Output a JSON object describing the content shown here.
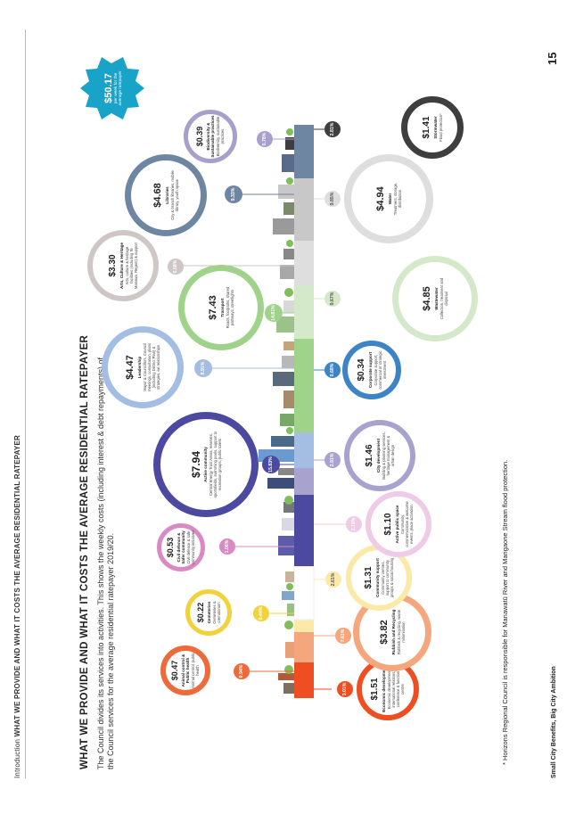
{
  "header": {
    "section": "Introduction",
    "title": "WHAT WE PROVIDE AND WHAT IT COSTS THE AVERAGE RESIDENTIAL RATEPAYER"
  },
  "main": {
    "title": "WHAT WE PROVIDE AND WHAT IT COSTS THE AVERAGE RESIDENTIAL RATEPAYER",
    "intro": "The Council divides its services into activities. This shows the weekly costs (including interest & debt repayments) of the Council services for the average residential ratepayer 2019/20."
  },
  "total": {
    "amount": "$50.17",
    "label": "per week for the average ratepayer"
  },
  "activities_top": [
    {
      "amount": "$0.47",
      "name": "Animal control & Public health",
      "desc": "Animal control, public health",
      "pct": "0.94%",
      "color": "#ef6a3a"
    },
    {
      "amount": "$0.22",
      "name": "Cemeteries",
      "desc": "Cemeteries & crematorium",
      "pct": "0.44%",
      "color": "#f2d23c"
    },
    {
      "amount": "$0.53",
      "name": "Civil defence & Safer community",
      "desc": "Civil defence & safe community initiatives",
      "pct": "1.06%",
      "color": "#d98ac3"
    },
    {
      "amount": "$7.94",
      "name": "Active community",
      "desc": "Central Energy Trust Arena, reserves, sportsfields, swimming pools, support to recreation groups, public toilets",
      "pct": "15.83%",
      "color": "#4b4aa0"
    },
    {
      "amount": "$4.47",
      "name": "Leadership",
      "desc": "Mayor & Councillors, Council meetings, consultation, plans (including District Plan) & strategies, iwi relationships",
      "pct": "8.91%",
      "color": "#a3bde3"
    },
    {
      "amount": "$7.43",
      "name": "Transport",
      "desc": "Roads, footpaths, shared pathways, streetlights",
      "pct": "14.81%",
      "color": "#9fd38a"
    },
    {
      "amount": "$3.30",
      "name": "Arts, Culture & Heritage",
      "desc": "Arts, culture & heritage facilities (including Te Manawa, Regent) & support",
      "pct": "6.58%",
      "color": "#cfc6c6"
    },
    {
      "amount": "$4.68",
      "name": "Libraries",
      "desc": "City & branch libraries, mobile library, youth space",
      "pct": "9.33%",
      "color": "#6f86a3"
    },
    {
      "amount": "$0.39",
      "name": "Biodiversity & Sustainable practices",
      "desc": "Biodiversity, sustainable practices",
      "pct": "0.78%",
      "color": "#a89fcc"
    }
  ],
  "activities_bottom": [
    {
      "amount": "$1.51",
      "name": "Economic development",
      "desc": "Economic development, international relations, conference & function centre",
      "pct": "3.01%",
      "color": "#ee4e22"
    },
    {
      "amount": "$3.82",
      "name": "Rubbish and Recycling",
      "desc": "Rubbish & recycling, waste minimisation",
      "pct": "7.61%",
      "color": "#f5a67c"
    },
    {
      "amount": "$1.31",
      "name": "Community support",
      "desc": "Community centres, support to community groups & social housing",
      "pct": "2.61%",
      "color": "#fae9a7"
    },
    {
      "amount": "$1.10",
      "name": "Active public space",
      "desc": "Community, commemorative & welcome events, place activation",
      "pct": "2.19%",
      "color": "#efcbe6"
    },
    {
      "amount": "$1.46",
      "name": "City development",
      "desc": "Building & planning services, heritage management & urban design",
      "pct": "2.91%",
      "color": "#a8a2ce"
    },
    {
      "amount": "$0.34",
      "name": "Corporate support",
      "desc": "Corporate support, commercial or strategic investment",
      "pct": "0.68%",
      "color": "#3d84c6"
    },
    {
      "amount": "$4.85",
      "name": "Wastewater",
      "desc": "Collection, treatment and disposal",
      "pct": "9.67%",
      "color": "#d3e9c9"
    },
    {
      "amount": "$4.94",
      "name": "Water",
      "desc": "Treatment, storage, distribution",
      "pct": "9.85%",
      "color": "#dedede"
    },
    {
      "amount": "$1.41",
      "name": "Stormwater",
      "desc": "Flood protection*",
      "pct": "2.81%",
      "color": "#3e3e3e"
    }
  ],
  "footnote": "* Horizons Regional Council is responsible for Manawatū River and Mangaone Stream flood protection.",
  "footer": {
    "left": "Small City Benefits, Big City Ambition",
    "page": "15"
  }
}
